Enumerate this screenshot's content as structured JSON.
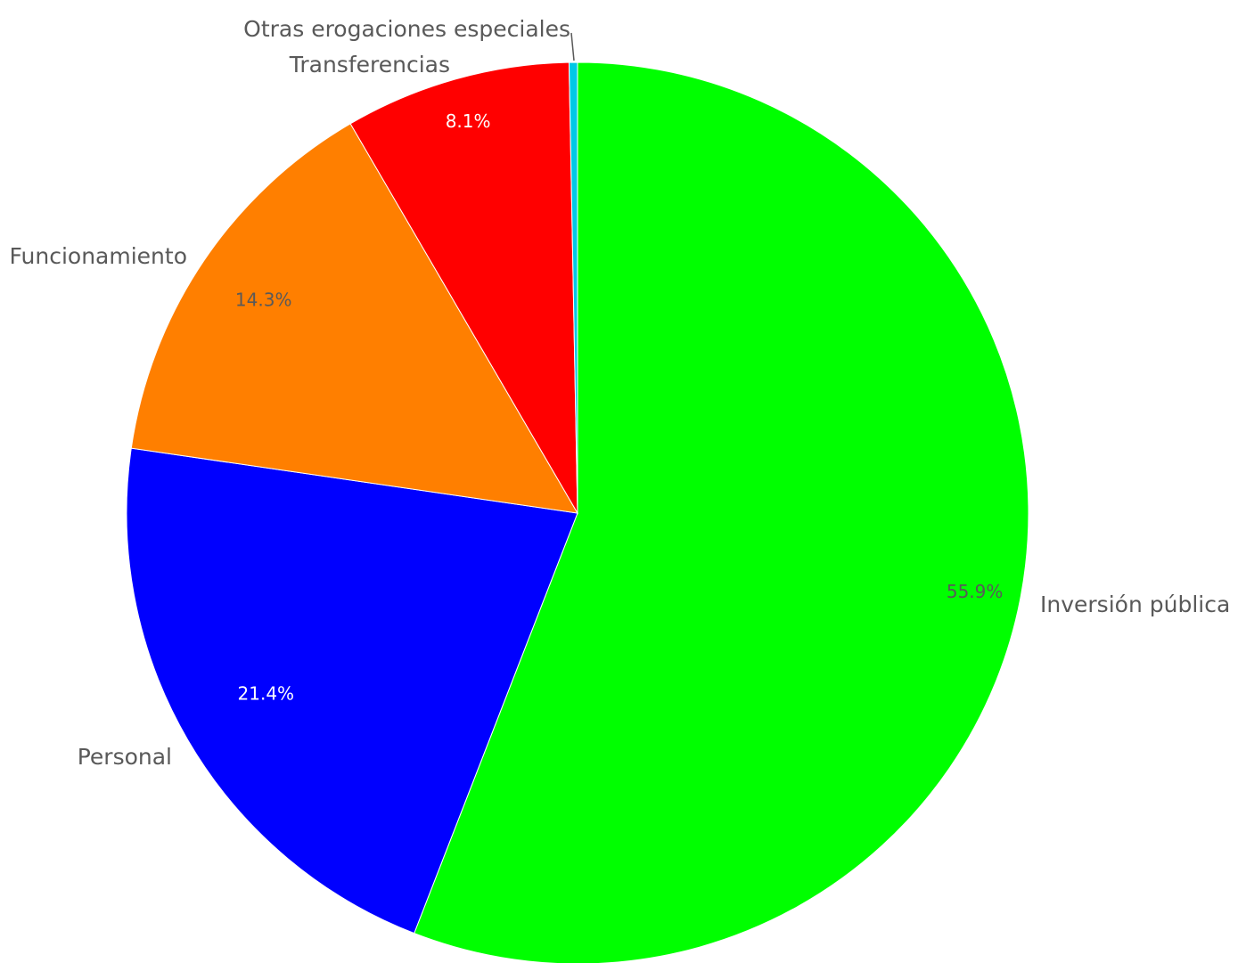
{
  "chart_data": {
    "type": "pie",
    "title": "",
    "slices": [
      {
        "label": "Inversión pública",
        "value": 55.9,
        "value_label": "55.9%",
        "color": "#00ff00",
        "value_label_color": "#595959"
      },
      {
        "label": "Personal",
        "value": 21.4,
        "value_label": "21.4%",
        "color": "#0000ff",
        "value_label_color": "#ffffff"
      },
      {
        "label": "Funcionamiento",
        "value": 14.3,
        "value_label": "14.3%",
        "color": "#ff7f00",
        "value_label_color": "#595959"
      },
      {
        "label": "Transferencias",
        "value": 8.1,
        "value_label": "8.1%",
        "color": "#ff0000",
        "value_label_color": "#ffffff"
      },
      {
        "label": "Otras erogaciones especiales",
        "value": 0.3,
        "value_label": "",
        "color": "#00c8e6",
        "value_label_color": "#595959"
      }
    ],
    "start_angle_deg": 0,
    "direction": "clockwise",
    "legend": "none"
  }
}
